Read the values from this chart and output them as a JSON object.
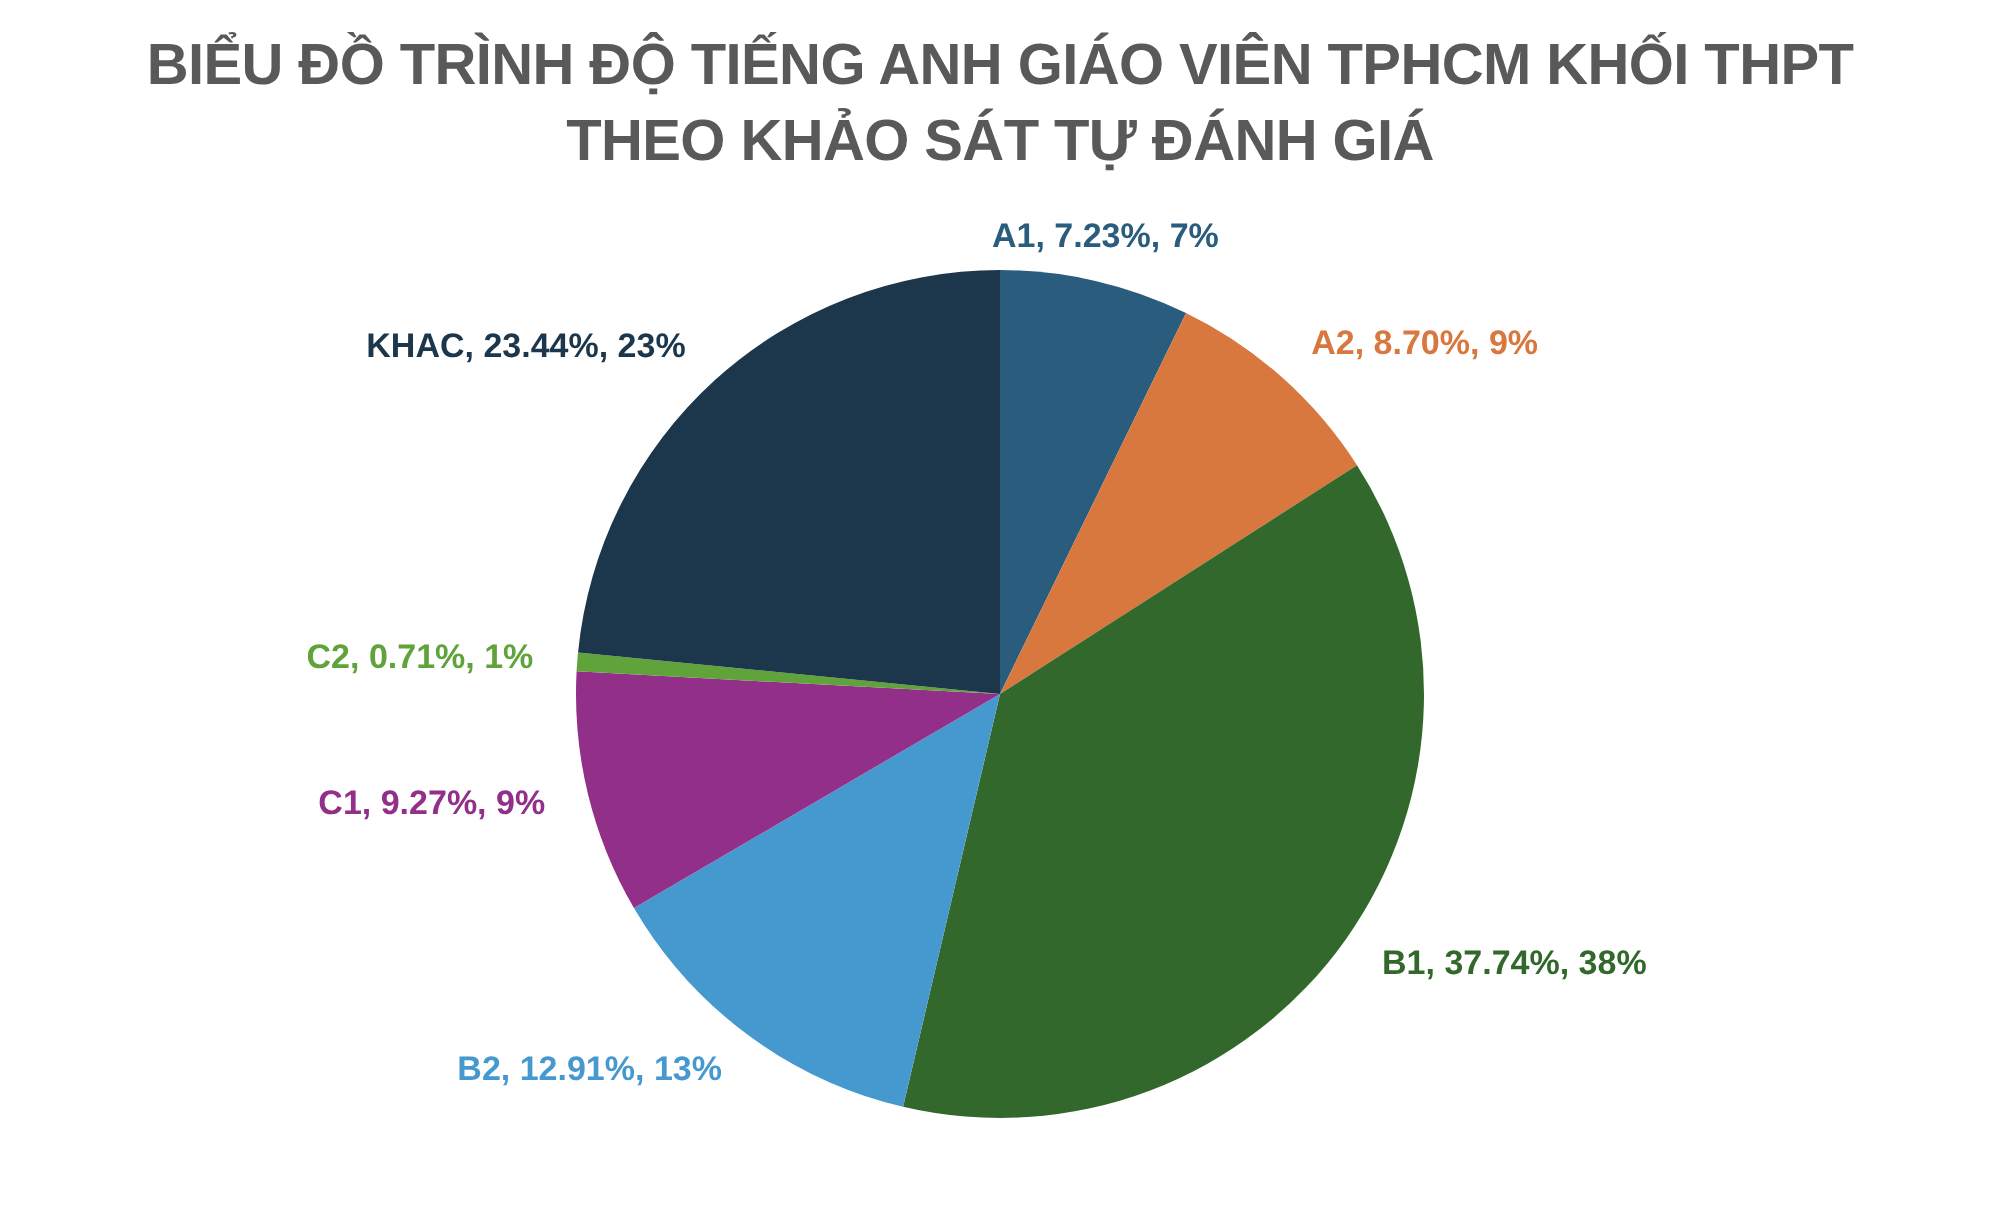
{
  "chart_data": {
    "type": "pie",
    "title": "BIỂU ĐỒ TRÌNH ĐỘ TIẾNG ANH GIÁO VIÊN TPHCM KHỐI THPT THEO KHẢO SÁT TỰ ĐÁNH GIÁ",
    "categories": [
      "A1",
      "A2",
      "B1",
      "B2",
      "C1",
      "C2",
      "KHAC"
    ],
    "values": [
      7.23,
      8.7,
      37.74,
      12.91,
      9.27,
      0.71,
      23.44
    ],
    "colors": [
      "#2a5c7d",
      "#d8773e",
      "#32682c",
      "#4699cf",
      "#922f89",
      "#5fa33a",
      "#1c364b"
    ],
    "value_labels": [
      "7.23%, 7%",
      "8.70%, 9%",
      "37.74%, 38%",
      "12.91%, 13%",
      "9.27%, 9%",
      "0.71%, 1%",
      "23.44%, 23%"
    ]
  }
}
